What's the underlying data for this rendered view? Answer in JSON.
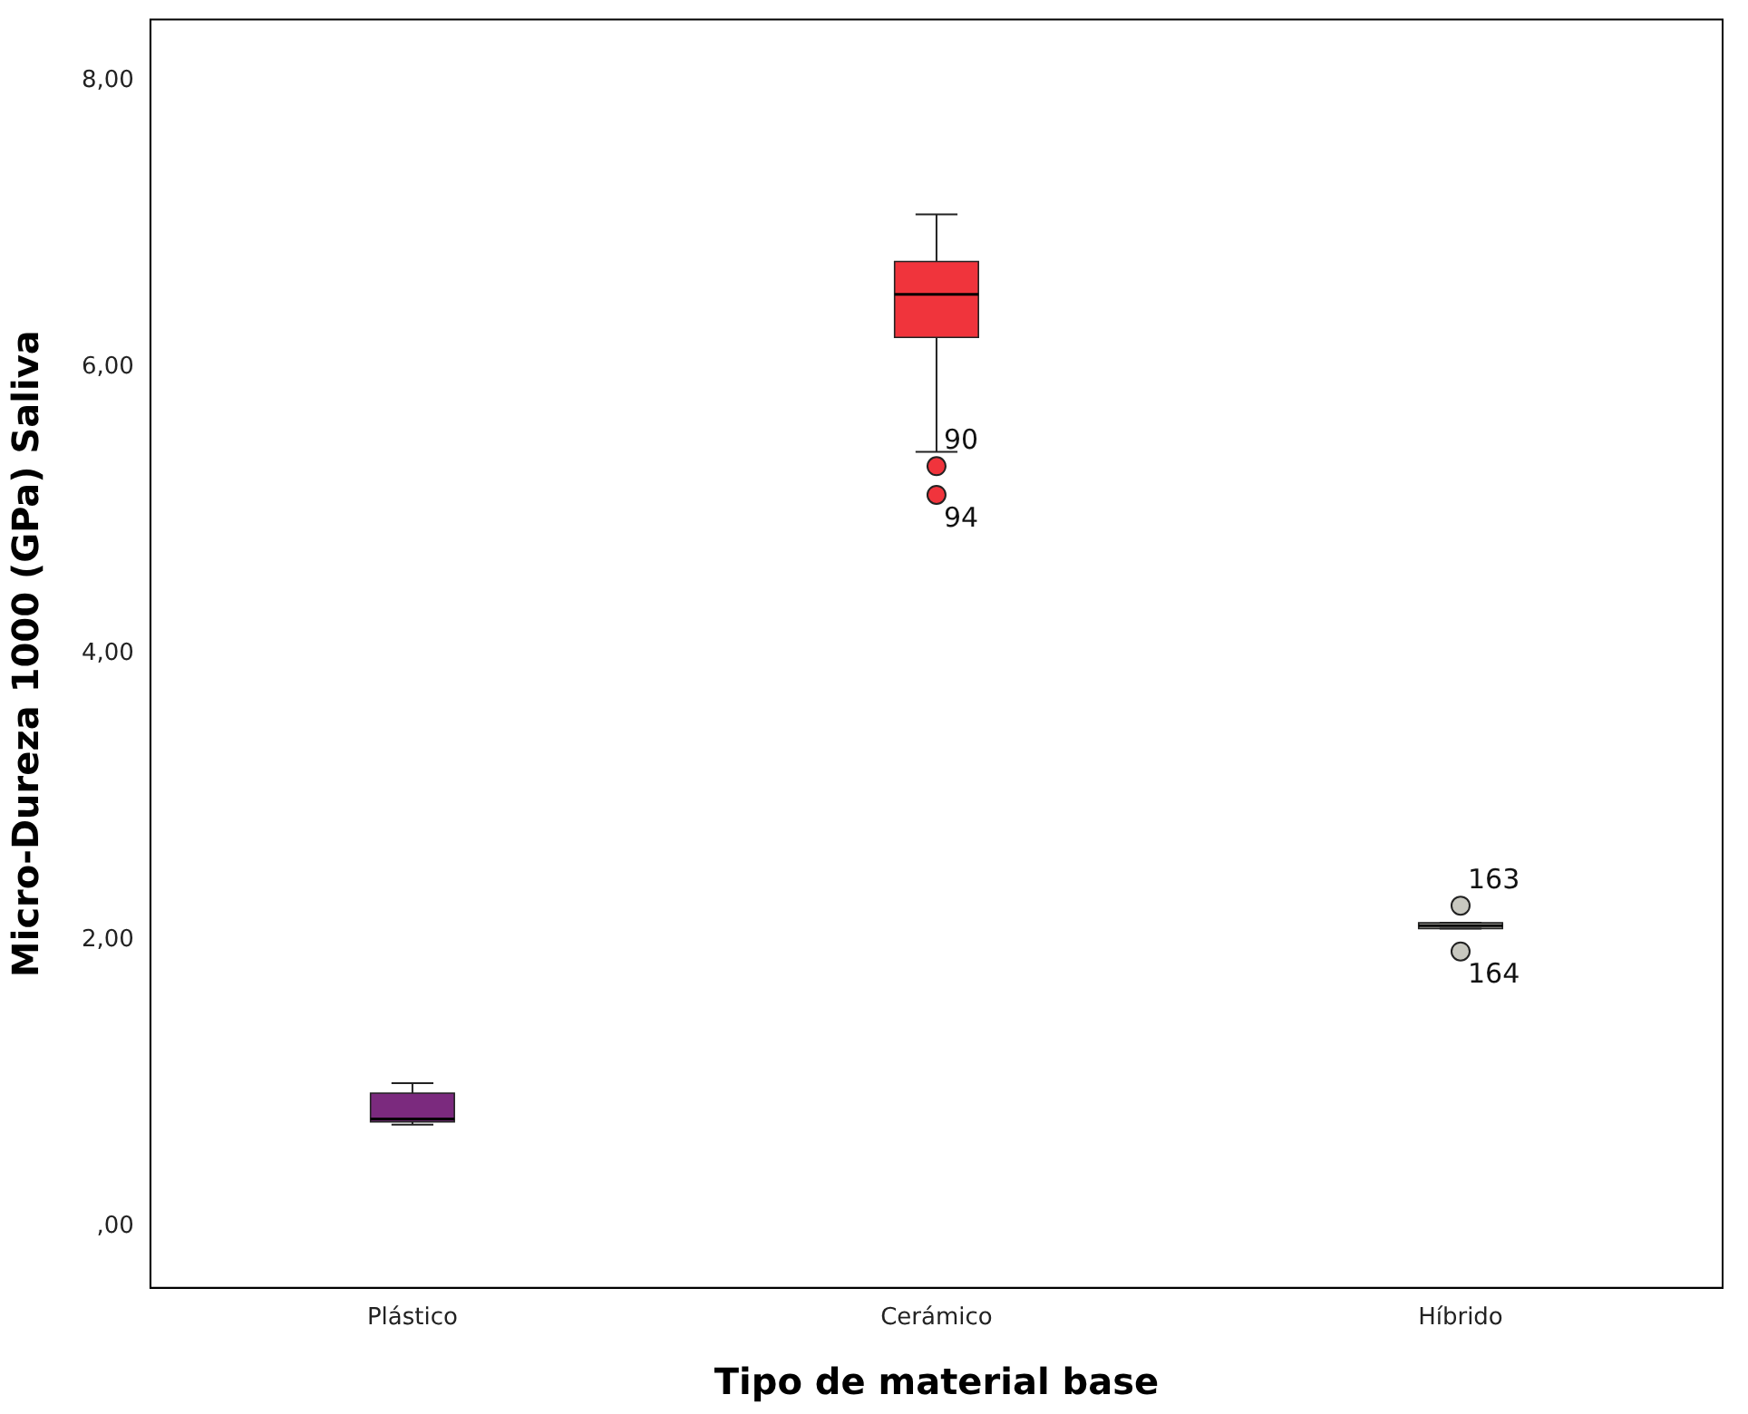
{
  "chart_data": {
    "type": "box",
    "xlabel": "Tipo de material base",
    "ylabel": "Micro-Dureza 1000 (GPa) Saliva",
    "categories": [
      "Plástico",
      "Cerámico",
      "Híbrido"
    ],
    "colors": [
      "#7b2a7e",
      "#f0343c",
      "#c8c8c0"
    ],
    "boxes": [
      {
        "low": 0.71,
        "q1": 0.73,
        "median": 0.75,
        "q3": 0.93,
        "high": 1.0
      },
      {
        "low": 5.41,
        "q1": 6.21,
        "median": 6.51,
        "q3": 6.74,
        "high": 7.07,
        "outliers": [
          5.31,
          5.11
        ]
      },
      {
        "low": 2.08,
        "q1": 2.08,
        "median": 2.1,
        "q3": 2.12,
        "high": 2.12,
        "outliers": [
          2.24,
          1.92
        ]
      }
    ],
    "ylim": [
      -0.43,
      8.43
    ],
    "yticks": [
      {
        "value": 0,
        "label": ",00"
      },
      {
        "value": 2,
        "label": "2,00"
      },
      {
        "value": 4,
        "label": "4,00"
      },
      {
        "value": 6,
        "label": "6,00"
      },
      {
        "value": 8,
        "label": "8,00"
      }
    ],
    "annotations": [
      "90",
      "94",
      "163",
      "164"
    ],
    "grid": false,
    "legend": false
  }
}
